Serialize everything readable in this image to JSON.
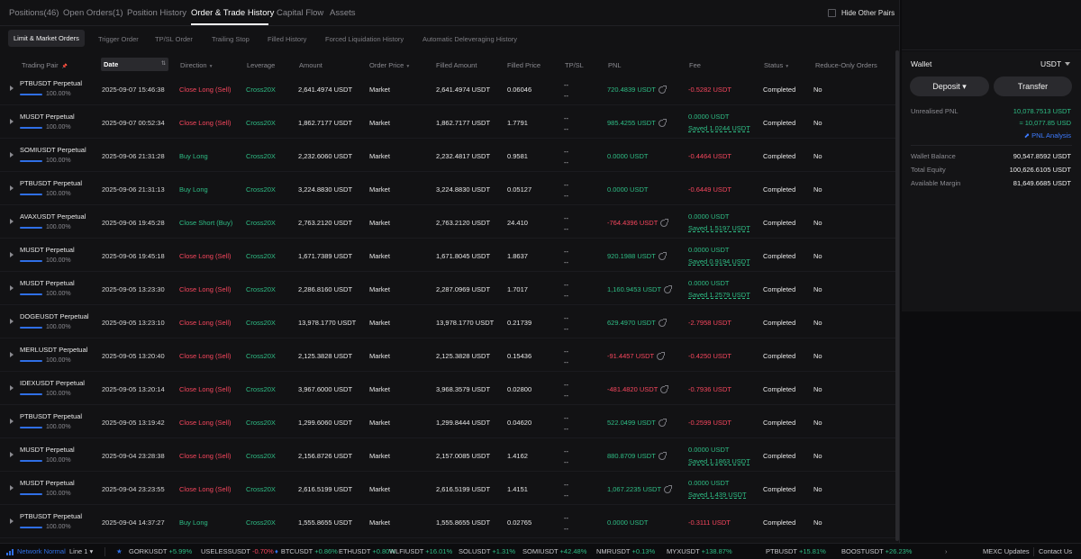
{
  "tabs": [
    {
      "label": "Positions(46)"
    },
    {
      "label": "Open Orders(1)"
    },
    {
      "label": "Position History"
    },
    {
      "label": "Order & Trade History"
    },
    {
      "label": "Capital Flow"
    },
    {
      "label": "Assets"
    }
  ],
  "hide_other_pairs": "Hide Other Pairs",
  "subtabs": [
    {
      "label": "Limit & Market Orders"
    },
    {
      "label": "Trigger Order"
    },
    {
      "label": "TP/SL Order"
    },
    {
      "label": "Trailing Stop"
    },
    {
      "label": "Filled History"
    },
    {
      "label": "Forced Liquidation History"
    },
    {
      "label": "Automatic Deleveraging History"
    }
  ],
  "columns": {
    "pair": "Trading Pair",
    "date": "Date",
    "direction": "Direction",
    "leverage": "Leverage",
    "amount": "Amount",
    "order_price": "Order Price",
    "filled_amount": "Filled Amount",
    "filled_price": "Filled Price",
    "tpsl": "TP/SL",
    "pnl": "PNL",
    "fee": "Fee",
    "status": "Status",
    "reduce_only": "Reduce-Only Orders"
  },
  "rows": [
    {
      "pair": "PTBUSDT Perpetual",
      "pct": "100.00%",
      "date": "2025-09-07 15:46:38",
      "direction": "Close Long (Sell)",
      "dir_color": "red",
      "leverage": "Cross20X",
      "amount": "2,641.4974 USDT",
      "order_price": "Market",
      "filled_amount": "2,641.4974 USDT",
      "filled_price": "0.06046",
      "tp": "--",
      "sl": "--",
      "pnl": "720.4839 USDT",
      "pnl_color": "green",
      "pnl_share": true,
      "fee": "-0.5282 USDT",
      "fee_saved": "",
      "status": "Completed",
      "reduce_only": "No"
    },
    {
      "pair": "MUSDT Perpetual",
      "pct": "100.00%",
      "date": "2025-09-07 00:52:34",
      "direction": "Close Long (Sell)",
      "dir_color": "red",
      "leverage": "Cross20X",
      "amount": "1,862.7177 USDT",
      "order_price": "Market",
      "filled_amount": "1,862.7177 USDT",
      "filled_price": "1.7791",
      "tp": "--",
      "sl": "--",
      "pnl": "985.4255 USDT",
      "pnl_color": "green",
      "pnl_share": true,
      "fee": "0.0000 USDT",
      "fee_saved": "Saved 1.0244 USDT",
      "status": "Completed",
      "reduce_only": "No"
    },
    {
      "pair": "SOMIUSDT Perpetual",
      "pct": "100.00%",
      "date": "2025-09-06 21:31:28",
      "direction": "Buy Long",
      "dir_color": "green",
      "leverage": "Cross20X",
      "amount": "2,232.6060 USDT",
      "order_price": "Market",
      "filled_amount": "2,232.4817 USDT",
      "filled_price": "0.9581",
      "tp": "--",
      "sl": "--",
      "pnl": "0.0000 USDT",
      "pnl_color": "green",
      "pnl_share": false,
      "fee": "-0.4464 USDT",
      "fee_saved": "",
      "status": "Completed",
      "reduce_only": "No"
    },
    {
      "pair": "PTBUSDT Perpetual",
      "pct": "100.00%",
      "date": "2025-09-06 21:31:13",
      "direction": "Buy Long",
      "dir_color": "green",
      "leverage": "Cross20X",
      "amount": "3,224.8830 USDT",
      "order_price": "Market",
      "filled_amount": "3,224.8830 USDT",
      "filled_price": "0.05127",
      "tp": "--",
      "sl": "--",
      "pnl": "0.0000 USDT",
      "pnl_color": "green",
      "pnl_share": false,
      "fee": "-0.6449 USDT",
      "fee_saved": "",
      "status": "Completed",
      "reduce_only": "No"
    },
    {
      "pair": "AVAXUSDT Perpetual",
      "pct": "100.00%",
      "date": "2025-09-06 19:45:28",
      "direction": "Close Short (Buy)",
      "dir_color": "green",
      "leverage": "Cross20X",
      "amount": "2,763.2120 USDT",
      "order_price": "Market",
      "filled_amount": "2,763.2120 USDT",
      "filled_price": "24.410",
      "tp": "--",
      "sl": "--",
      "pnl": "-764.4396 USDT",
      "pnl_color": "red",
      "pnl_share": true,
      "fee": "0.0000 USDT",
      "fee_saved": "Saved 1.5197 USDT",
      "status": "Completed",
      "reduce_only": "No"
    },
    {
      "pair": "MUSDT Perpetual",
      "pct": "100.00%",
      "date": "2025-09-06 19:45:18",
      "direction": "Close Long (Sell)",
      "dir_color": "red",
      "leverage": "Cross20X",
      "amount": "1,671.7389 USDT",
      "order_price": "Market",
      "filled_amount": "1,671.8045 USDT",
      "filled_price": "1.8637",
      "tp": "--",
      "sl": "--",
      "pnl": "920.1988 USDT",
      "pnl_color": "green",
      "pnl_share": true,
      "fee": "0.0000 USDT",
      "fee_saved": "Saved 0.9194 USDT",
      "status": "Completed",
      "reduce_only": "No"
    },
    {
      "pair": "MUSDT Perpetual",
      "pct": "100.00%",
      "date": "2025-09-05 13:23:30",
      "direction": "Close Long (Sell)",
      "dir_color": "red",
      "leverage": "Cross20X",
      "amount": "2,286.8160 USDT",
      "order_price": "Market",
      "filled_amount": "2,287.0969 USDT",
      "filled_price": "1.7017",
      "tp": "--",
      "sl": "--",
      "pnl": "1,160.9453 USDT",
      "pnl_color": "green",
      "pnl_share": true,
      "fee": "0.0000 USDT",
      "fee_saved": "Saved 1.2579 USDT",
      "status": "Completed",
      "reduce_only": "No"
    },
    {
      "pair": "DOGEUSDT Perpetual",
      "pct": "100.00%",
      "date": "2025-09-05 13:23:10",
      "direction": "Close Long (Sell)",
      "dir_color": "red",
      "leverage": "Cross20X",
      "amount": "13,978.1770 USDT",
      "order_price": "Market",
      "filled_amount": "13,978.1770 USDT",
      "filled_price": "0.21739",
      "tp": "--",
      "sl": "--",
      "pnl": "629.4970 USDT",
      "pnl_color": "green",
      "pnl_share": true,
      "fee": "-2.7958 USDT",
      "fee_saved": "",
      "status": "Completed",
      "reduce_only": "No"
    },
    {
      "pair": "MERLUSDT Perpetual",
      "pct": "100.00%",
      "date": "2025-09-05 13:20:40",
      "direction": "Close Long (Sell)",
      "dir_color": "red",
      "leverage": "Cross20X",
      "amount": "2,125.3828 USDT",
      "order_price": "Market",
      "filled_amount": "2,125.3828 USDT",
      "filled_price": "0.15436",
      "tp": "--",
      "sl": "--",
      "pnl": "-91.4457 USDT",
      "pnl_color": "red",
      "pnl_share": true,
      "fee": "-0.4250 USDT",
      "fee_saved": "",
      "status": "Completed",
      "reduce_only": "No"
    },
    {
      "pair": "IDEXUSDT Perpetual",
      "pct": "100.00%",
      "date": "2025-09-05 13:20:14",
      "direction": "Close Long (Sell)",
      "dir_color": "red",
      "leverage": "Cross20X",
      "amount": "3,967.6000 USDT",
      "order_price": "Market",
      "filled_amount": "3,968.3579 USDT",
      "filled_price": "0.02800",
      "tp": "--",
      "sl": "--",
      "pnl": "-481.4820 USDT",
      "pnl_color": "red",
      "pnl_share": true,
      "fee": "-0.7936 USDT",
      "fee_saved": "",
      "status": "Completed",
      "reduce_only": "No"
    },
    {
      "pair": "PTBUSDT Perpetual",
      "pct": "100.00%",
      "date": "2025-09-05 13:19:42",
      "direction": "Close Long (Sell)",
      "dir_color": "red",
      "leverage": "Cross20X",
      "amount": "1,299.6060 USDT",
      "order_price": "Market",
      "filled_amount": "1,299.8444 USDT",
      "filled_price": "0.04620",
      "tp": "--",
      "sl": "--",
      "pnl": "522.0499 USDT",
      "pnl_color": "green",
      "pnl_share": true,
      "fee": "-0.2599 USDT",
      "fee_saved": "",
      "status": "Completed",
      "reduce_only": "No"
    },
    {
      "pair": "MUSDT Perpetual",
      "pct": "100.00%",
      "date": "2025-09-04 23:28:38",
      "direction": "Close Long (Sell)",
      "dir_color": "red",
      "leverage": "Cross20X",
      "amount": "2,156.8726 USDT",
      "order_price": "Market",
      "filled_amount": "2,157.0085 USDT",
      "filled_price": "1.4162",
      "tp": "--",
      "sl": "--",
      "pnl": "880.8709 USDT",
      "pnl_color": "green",
      "pnl_share": true,
      "fee": "0.0000 USDT",
      "fee_saved": "Saved 1.1863 USDT",
      "status": "Completed",
      "reduce_only": "No"
    },
    {
      "pair": "MUSDT Perpetual",
      "pct": "100.00%",
      "date": "2025-09-04 23:23:55",
      "direction": "Close Long (Sell)",
      "dir_color": "red",
      "leverage": "Cross20X",
      "amount": "2,616.5199 USDT",
      "order_price": "Market",
      "filled_amount": "2,616.5199 USDT",
      "filled_price": "1.4151",
      "tp": "--",
      "sl": "--",
      "pnl": "1,067.2235 USDT",
      "pnl_color": "green",
      "pnl_share": true,
      "fee": "0.0000 USDT",
      "fee_saved": "Saved 1.439 USDT",
      "status": "Completed",
      "reduce_only": "No"
    },
    {
      "pair": "PTBUSDT Perpetual",
      "pct": "100.00%",
      "date": "2025-09-04 14:37:27",
      "direction": "Buy Long",
      "dir_color": "green",
      "leverage": "Cross20X",
      "amount": "1,555.8655 USDT",
      "order_price": "Market",
      "filled_amount": "1,555.8655 USDT",
      "filled_price": "0.02765",
      "tp": "--",
      "sl": "--",
      "pnl": "0.0000 USDT",
      "pnl_color": "green",
      "pnl_share": false,
      "fee": "-0.3111 USDT",
      "fee_saved": "",
      "status": "Completed",
      "reduce_only": "No"
    }
  ],
  "wallet": {
    "title": "Wallet",
    "currency": "USDT",
    "deposit": "Deposit",
    "transfer": "Transfer",
    "unrealised_pnl_label": "Unrealised PNL",
    "unrealised_pnl_value": "10,078.7513 USDT",
    "unrealised_pnl_approx": "≈ 10,077.85 USD",
    "pnl_analysis": "PNL Analysis",
    "wallet_balance_label": "Wallet Balance",
    "wallet_balance_value": "90,547.8592 USDT",
    "total_equity_label": "Total Equity",
    "total_equity_value": "100,626.6105 USDT",
    "available_margin_label": "Available Margin",
    "available_margin_value": "81,649.6685 USDT"
  },
  "bottom_bar": {
    "network": "Network Normal",
    "line": "Line 1",
    "tickers": [
      {
        "sym": "GORKUSDT",
        "chg": "+5.99%",
        "color": "green"
      },
      {
        "sym": "USELESSUSDT",
        "chg": "-0.70%",
        "color": "red"
      },
      {
        "sym": "BTCUSDT",
        "chg": "+0.86%",
        "color": "green"
      },
      {
        "sym": "ETHUSDT",
        "chg": "+0.80%",
        "color": "green"
      },
      {
        "sym": "WLFIUSDT",
        "chg": "+16.01%",
        "color": "green"
      },
      {
        "sym": "SOLUSDT",
        "chg": "+1.31%",
        "color": "green"
      },
      {
        "sym": "SOMIUSDT",
        "chg": "+42.48%",
        "color": "green"
      },
      {
        "sym": "NMRUSDT",
        "chg": "+0.13%",
        "color": "green"
      },
      {
        "sym": "MYXUSDT",
        "chg": "+138.87%",
        "color": "green"
      },
      {
        "sym": "PTBUSDT",
        "chg": "+15.81%",
        "color": "green"
      },
      {
        "sym": "BOOSTUSDT",
        "chg": "+26.23%",
        "color": "green"
      }
    ],
    "updates": "MEXC Updates",
    "contact": "Contact Us"
  },
  "colors": {
    "green": "#2ebd85",
    "red": "#f6465d",
    "accent_blue": "#2f6fe6"
  }
}
